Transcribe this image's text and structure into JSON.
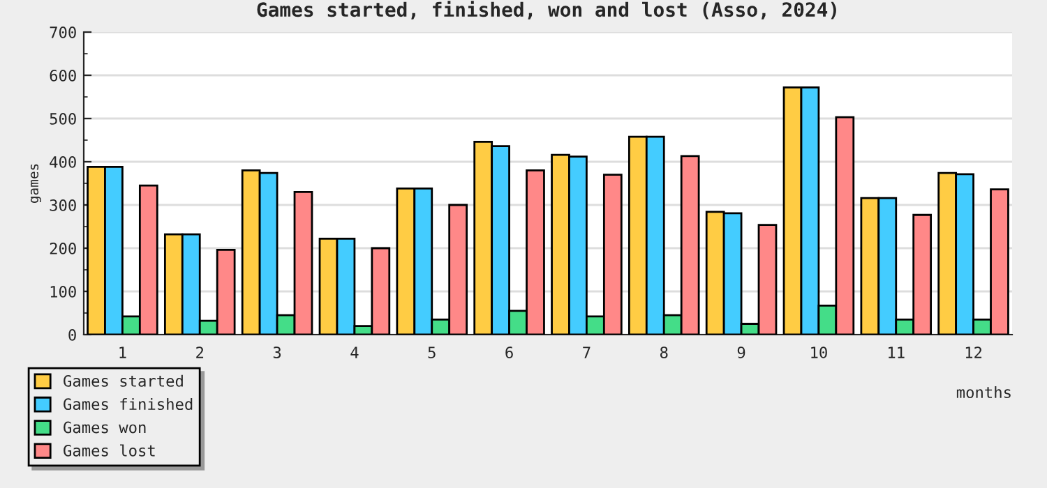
{
  "chart_data": {
    "type": "bar",
    "title": "Games started, finished, won and lost (Asso, 2024)",
    "xlabel": "months",
    "ylabel": "games",
    "categories": [
      "1",
      "2",
      "3",
      "4",
      "5",
      "6",
      "7",
      "8",
      "9",
      "10",
      "11",
      "12"
    ],
    "series": [
      {
        "name": "Games started",
        "color": "#ffcc44",
        "values": [
          388,
          232,
          380,
          222,
          338,
          446,
          416,
          458,
          284,
          572,
          316,
          374
        ]
      },
      {
        "name": "Games finished",
        "color": "#44ccff",
        "values": [
          388,
          232,
          374,
          222,
          338,
          436,
          412,
          458,
          281,
          572,
          316,
          371
        ]
      },
      {
        "name": "Games won",
        "color": "#44dd88",
        "values": [
          42,
          32,
          45,
          20,
          35,
          55,
          42,
          45,
          25,
          67,
          35,
          35
        ]
      },
      {
        "name": "Games lost",
        "color": "#ff8888",
        "values": [
          345,
          196,
          330,
          200,
          300,
          380,
          370,
          413,
          254,
          503,
          277,
          336
        ]
      }
    ],
    "ylim": [
      0,
      700
    ],
    "yticks": [
      0,
      100,
      200,
      300,
      400,
      500,
      600,
      700
    ],
    "grid": "y",
    "legend": "bottom left"
  }
}
